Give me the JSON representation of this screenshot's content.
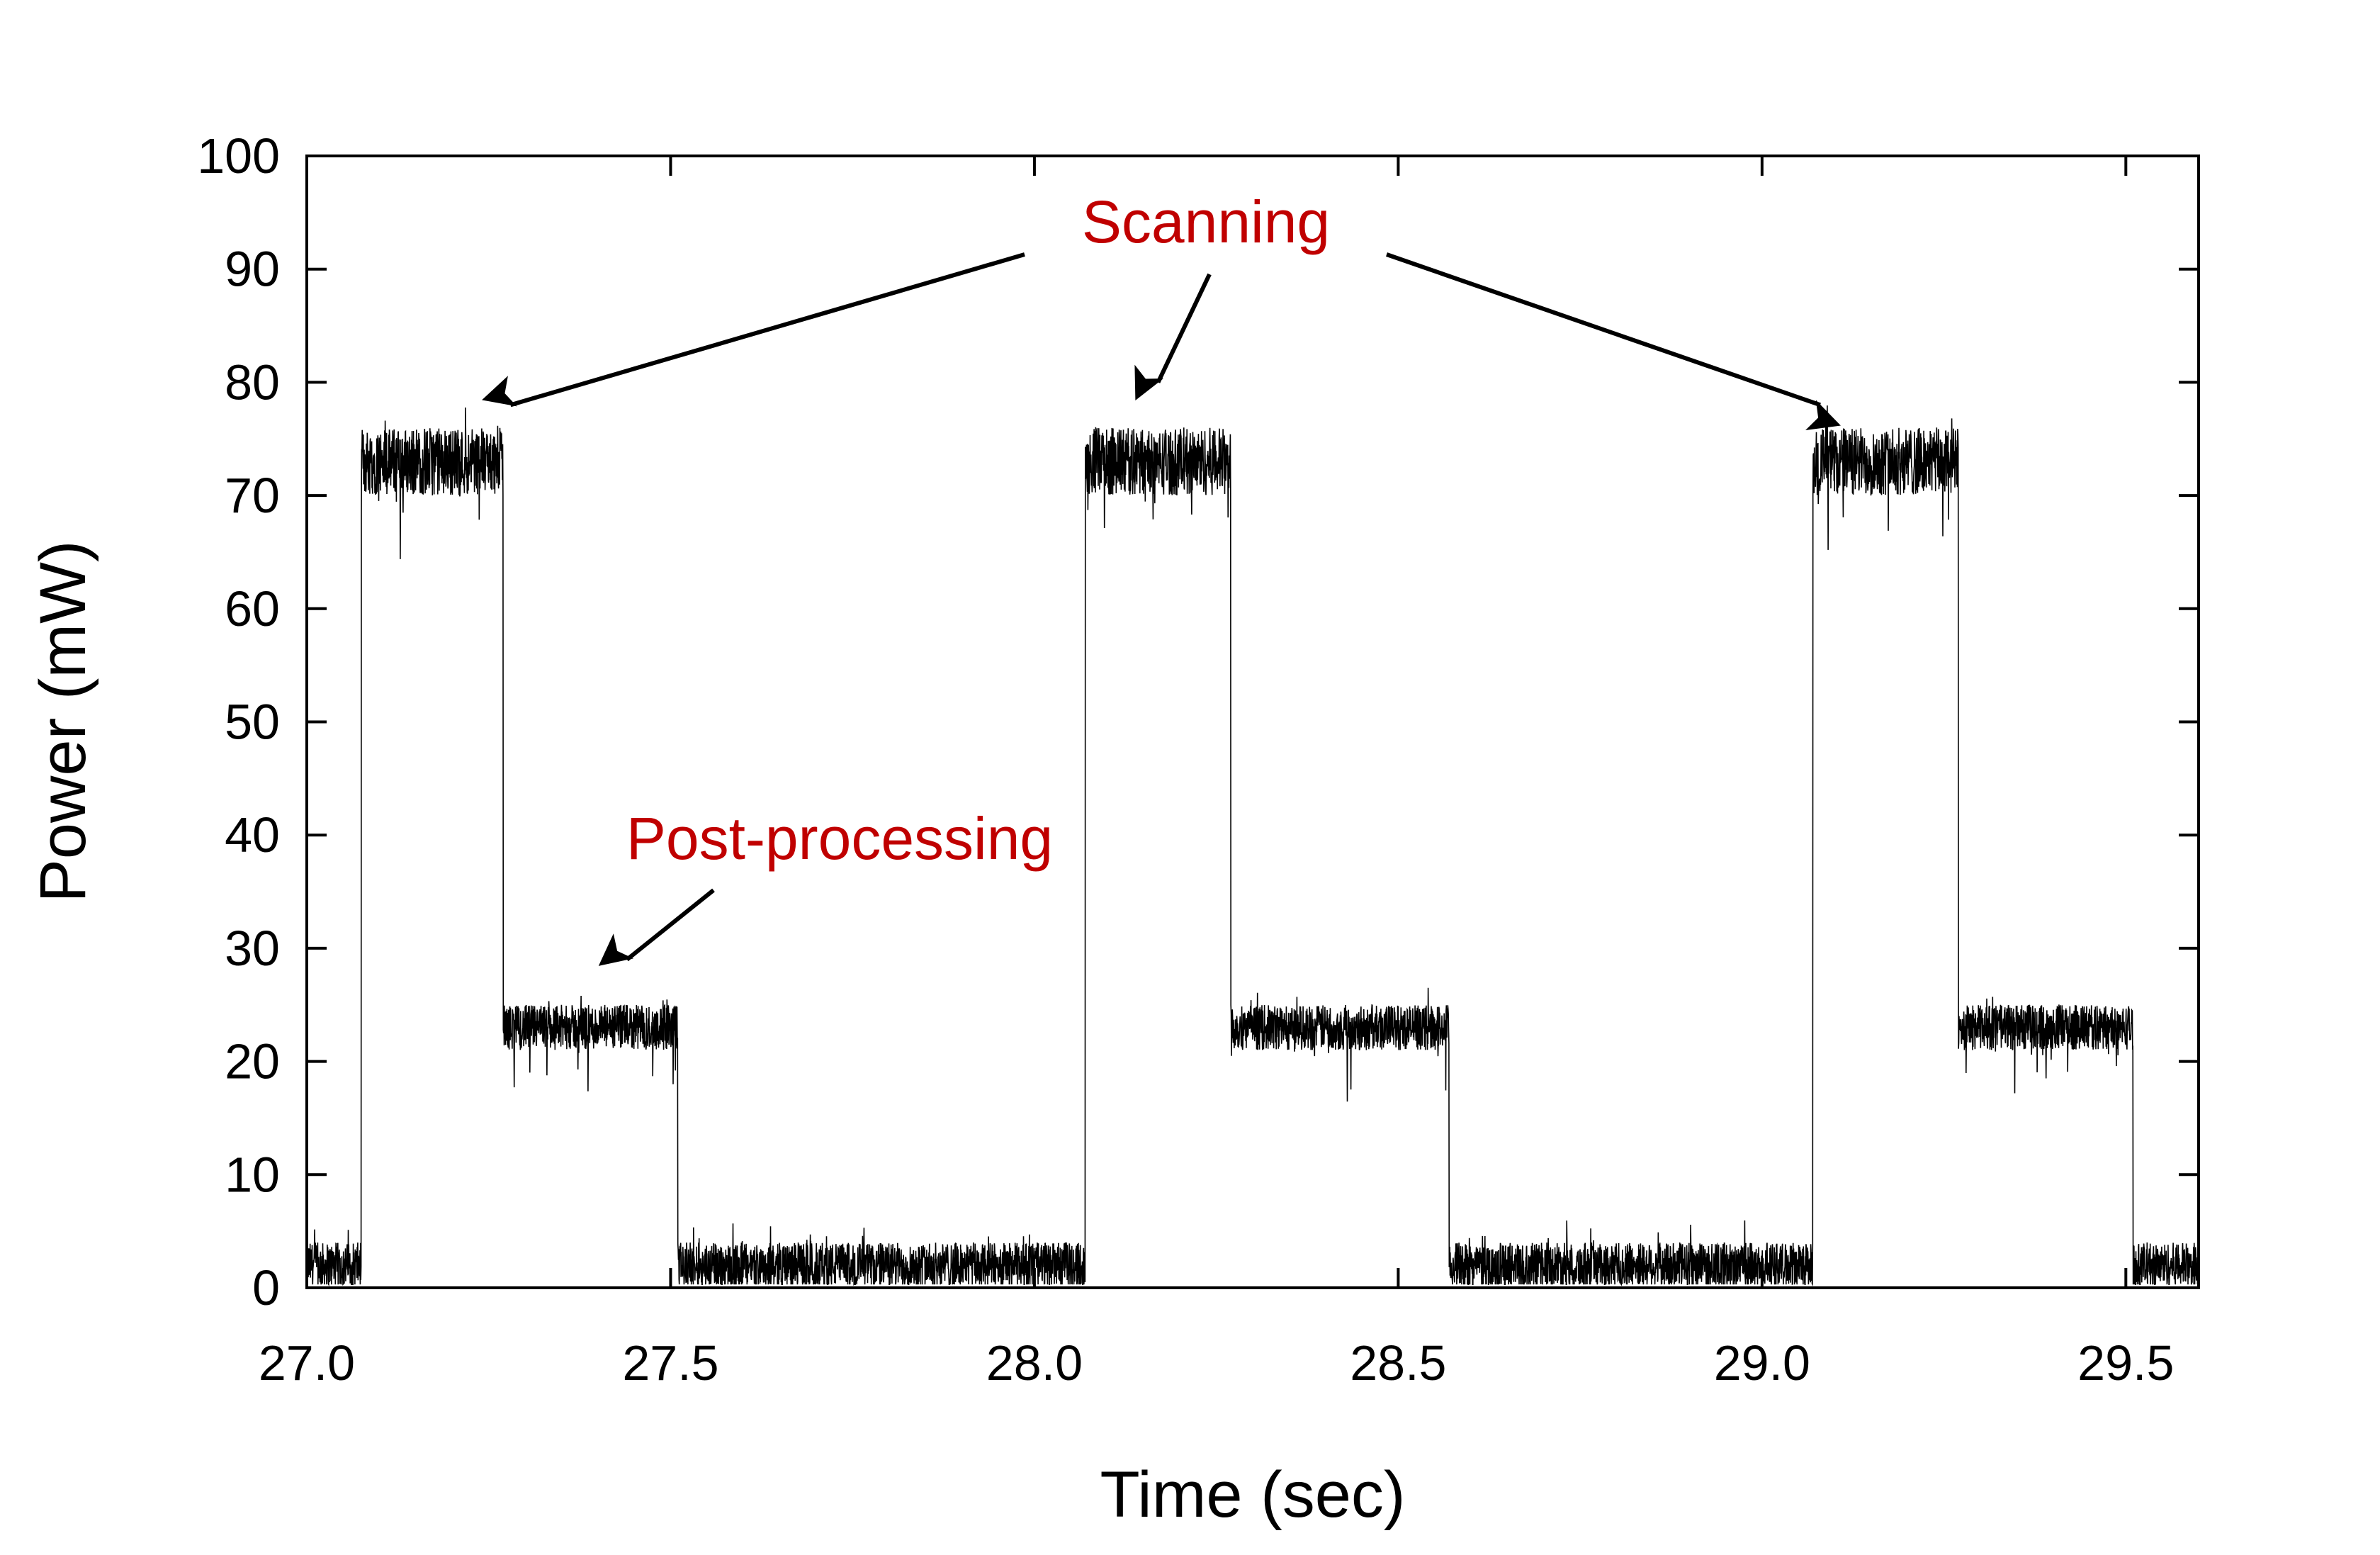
{
  "chart_data": {
    "type": "line",
    "title": "",
    "xlabel": "Time (sec)",
    "ylabel": "Power (mW)",
    "xlim": [
      27.0,
      29.6
    ],
    "ylim": [
      0,
      100
    ],
    "xticks": [
      27.0,
      27.5,
      28.0,
      28.5,
      29.0,
      29.5
    ],
    "xtick_labels": [
      "27.0",
      "27.5",
      "28.0",
      "28.5",
      "29.0",
      "29.5"
    ],
    "yticks": [
      0,
      10,
      20,
      30,
      40,
      50,
      60,
      70,
      80,
      90,
      100
    ],
    "grid": false,
    "line_color": "#000000",
    "annotation_color": "#c00000",
    "segments": [
      {
        "start": 27.0,
        "end": 27.075,
        "level": 2,
        "noise": 2
      },
      {
        "start": 27.075,
        "end": 27.27,
        "level": 73,
        "noise": 3
      },
      {
        "start": 27.27,
        "end": 27.51,
        "level": 23,
        "noise": 2
      },
      {
        "start": 27.51,
        "end": 28.07,
        "level": 2,
        "noise": 2
      },
      {
        "start": 28.07,
        "end": 28.27,
        "level": 73,
        "noise": 3
      },
      {
        "start": 28.27,
        "end": 28.57,
        "level": 23,
        "noise": 2
      },
      {
        "start": 28.57,
        "end": 29.07,
        "level": 2,
        "noise": 2
      },
      {
        "start": 29.07,
        "end": 29.27,
        "level": 73,
        "noise": 3
      },
      {
        "start": 29.27,
        "end": 29.51,
        "level": 23,
        "noise": 2
      },
      {
        "start": 29.51,
        "end": 29.6,
        "level": 2,
        "noise": 2
      }
    ],
    "annotations": [
      {
        "text": "Scanning",
        "targets": [
          [
            27.28,
            78
          ],
          [
            28.17,
            80
          ],
          [
            29.08,
            78
          ]
        ]
      },
      {
        "text": "Post-processing",
        "targets": [
          [
            27.44,
            29
          ]
        ]
      }
    ]
  }
}
